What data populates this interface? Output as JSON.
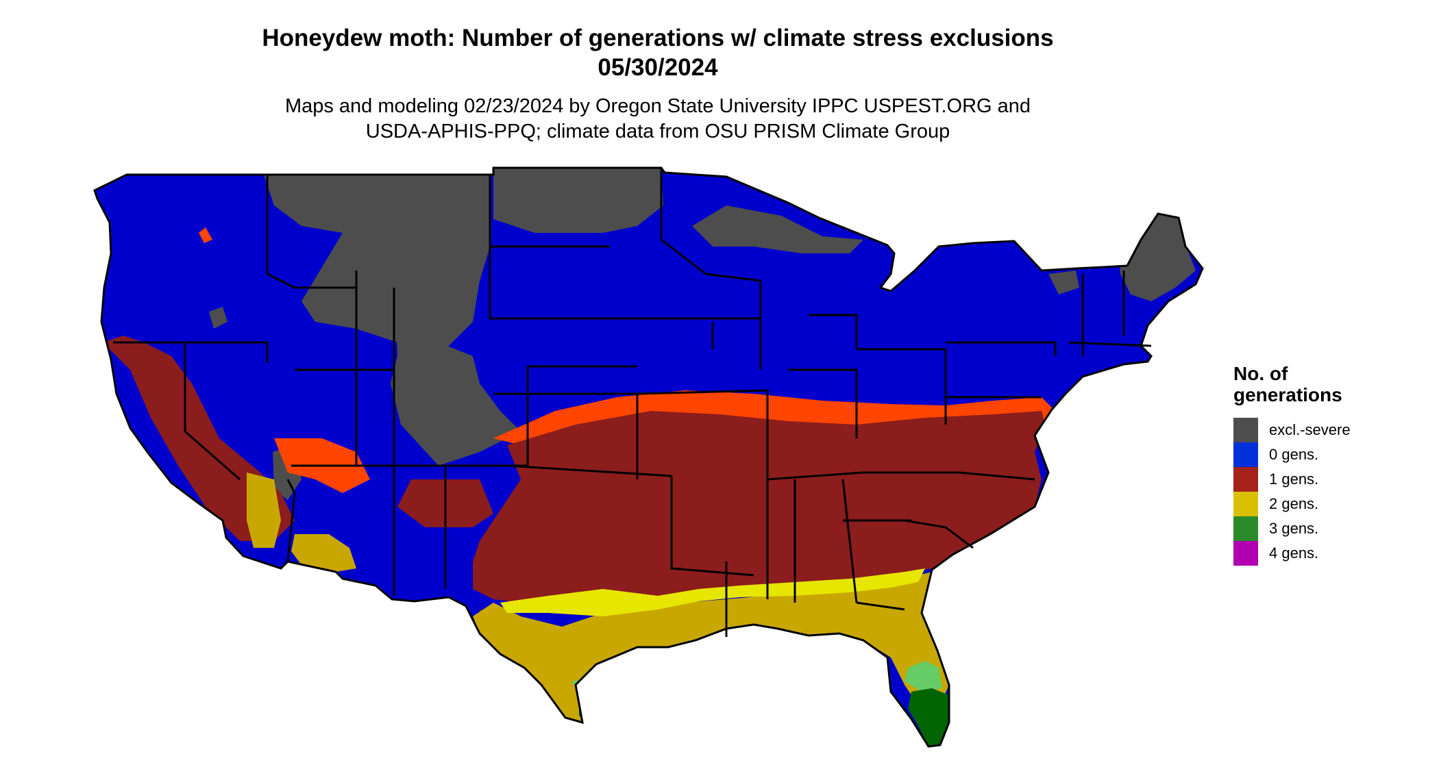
{
  "title": {
    "line1": "Honeydew moth: Number of generations w/ climate stress exclusions",
    "line2": "05/30/2024"
  },
  "subtitle": {
    "line1": "Maps and modeling 02/23/2024 by Oregon State University IPPC USPEST.ORG and",
    "line2": "USDA-APHIS-PPQ; climate data from OSU PRISM Climate Group"
  },
  "legend": {
    "title_line1": "No. of",
    "title_line2": "generations",
    "items": [
      {
        "label": "excl.-severe",
        "color": "#4d4d4d"
      },
      {
        "label": "0 gens.",
        "color": "#0030d8"
      },
      {
        "label": "1 gens.",
        "color": "#a5221b"
      },
      {
        "label": "2 gens.",
        "color": "#d8c000"
      },
      {
        "label": "3 gens.",
        "color": "#2a8a2a"
      },
      {
        "label": "4 gens.",
        "color": "#b000b0"
      }
    ]
  },
  "map_colors": {
    "excluded": "#4d4d4d",
    "gen0": "#0000cc",
    "gen1": "#8b1d1d",
    "gen1_light": "#ff4500",
    "gen2": "#c8a800",
    "gen2_light": "#e6e600",
    "gen3": "#006400",
    "gen3_light": "#66cc66",
    "gen4": "#cc00cc",
    "border": "#000000"
  }
}
